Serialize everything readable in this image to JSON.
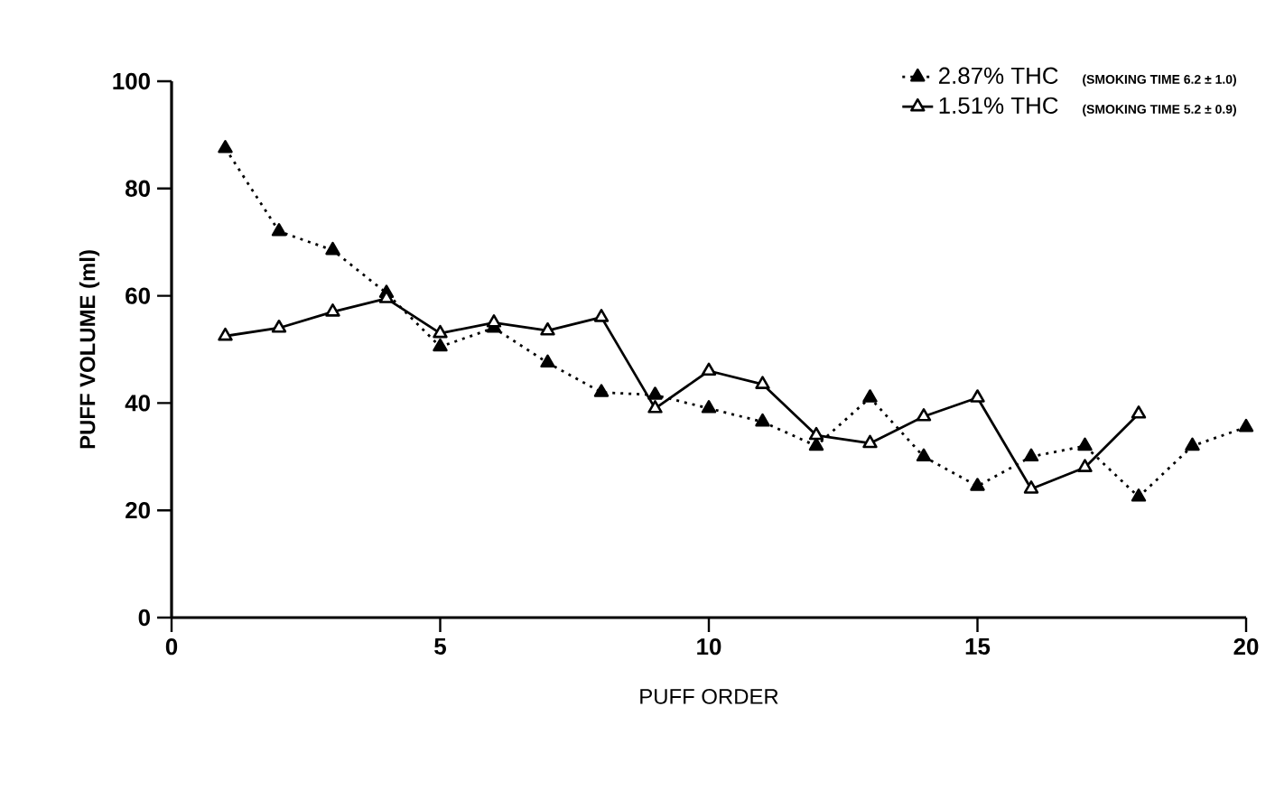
{
  "chart_data": {
    "type": "line",
    "xlabel": "PUFF ORDER",
    "ylabel": "PUFF VOLUME (ml)",
    "x": [
      1,
      2,
      3,
      4,
      5,
      6,
      7,
      8,
      9,
      10,
      11,
      12,
      13,
      14,
      15,
      16,
      17,
      18,
      19,
      20
    ],
    "xlim": [
      0,
      20
    ],
    "xticks": [
      0,
      5,
      10,
      15,
      20
    ],
    "ylim": [
      0,
      100
    ],
    "yticks": [
      0,
      20,
      40,
      60,
      80,
      100
    ],
    "marker": "triangle",
    "grid": false,
    "legend": "top right",
    "annotations": [
      "(SMOKING TIME 6.2 ± 1.0)",
      "(SMOKING TIME 5.2 ± 0.9)"
    ],
    "series": [
      {
        "name": "2.87% THC",
        "color": "#000000",
        "line_style": "dotted",
        "values": [
          87.5,
          72,
          68.5,
          60.5,
          50.5,
          54,
          47.5,
          42,
          41.5,
          39,
          36.5,
          32,
          41,
          30,
          24.5,
          30,
          32,
          22.5,
          32,
          35.5
        ]
      },
      {
        "name": "1.51% THC",
        "color": "#000000",
        "line_style": "solid",
        "values": [
          52.5,
          54,
          57,
          59.5,
          53,
          55,
          53.5,
          56,
          39,
          46,
          43.5,
          34,
          32.5,
          37.5,
          41,
          24,
          28,
          38,
          null,
          null
        ]
      }
    ]
  }
}
